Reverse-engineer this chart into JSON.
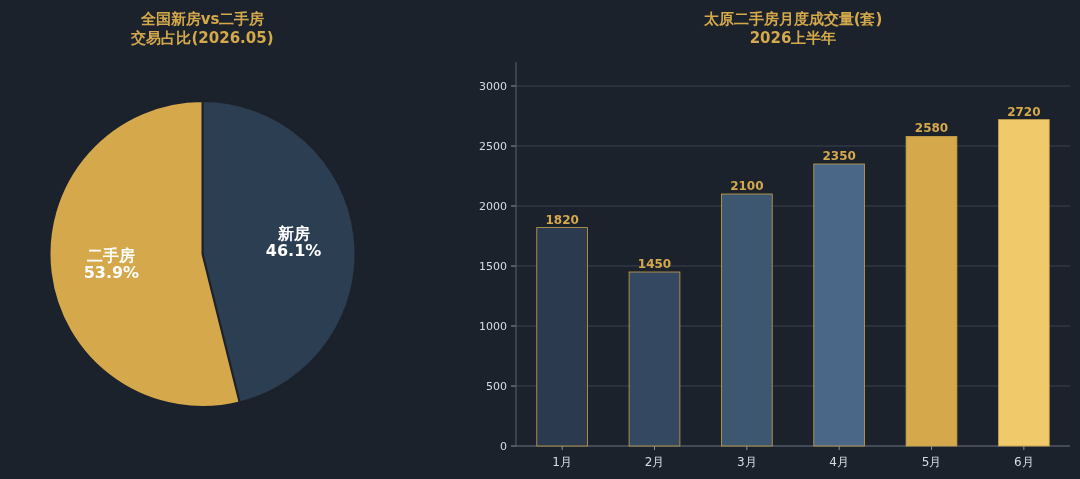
{
  "chart_data": [
    {
      "type": "pie",
      "title": "全国新房vs二手房",
      "subtitle": "交易占比(2026.05)",
      "categories": [
        "新房",
        "二手房"
      ],
      "values": [
        46.1,
        53.9
      ],
      "colors": [
        "#2c3e52",
        "#d4a84b"
      ],
      "value_labels": [
        "46.1%",
        "53.9%"
      ]
    },
    {
      "type": "bar",
      "title": "太原二手房月度成交量(套)",
      "subtitle": "2026上半年",
      "categories": [
        "1月",
        "2月",
        "3月",
        "4月",
        "5月",
        "6月"
      ],
      "values": [
        1820,
        1450,
        2100,
        2350,
        2580,
        2720
      ],
      "colors": [
        "#2b3a4e",
        "#344961",
        "#3e5771",
        "#4a6788",
        "#d4a84b",
        "#f0c96b"
      ],
      "ylim": [
        0,
        3200
      ],
      "yticks": [
        0,
        500,
        1000,
        1500,
        2000,
        2500,
        3000
      ],
      "grid": "y",
      "data_labels": true
    }
  ]
}
